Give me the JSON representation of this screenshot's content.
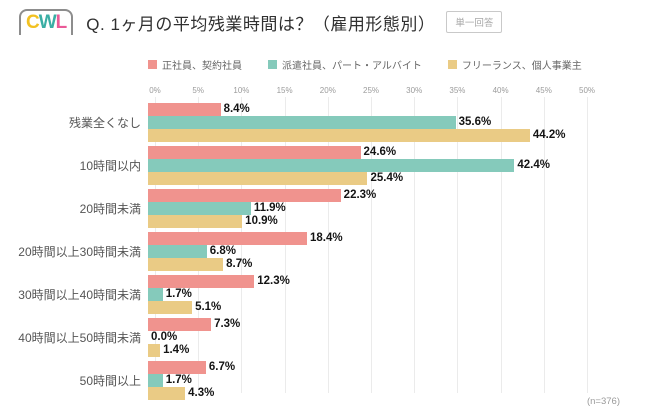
{
  "header": {
    "logo": {
      "letters": [
        {
          "char": "C",
          "color": "#f2c121"
        },
        {
          "char": "W",
          "color": "#3aaea4"
        },
        {
          "char": "L",
          "color": "#ea5a97"
        }
      ]
    },
    "title": "Q. 1ヶ月の平均残業時間は？（雇用形態別）",
    "badge": "単一回答"
  },
  "chart_data": {
    "type": "bar",
    "orientation": "horizontal",
    "title": "Q. 1ヶ月の平均残業時間は？（雇用形態別）",
    "categories": [
      "残業全くなし",
      "10時間以内",
      "20時間未満",
      "20時間以上30時間未満",
      "30時間以上40時間未満",
      "40時間以上50時間未満",
      "50時間以上"
    ],
    "series": [
      {
        "name": "正社員、契約社員",
        "color": "#f0938e",
        "values": [
          8.4,
          24.6,
          22.3,
          18.4,
          12.3,
          7.3,
          6.7
        ]
      },
      {
        "name": "派遣社員、パート・アルバイト",
        "color": "#85cabb",
        "values": [
          35.6,
          42.4,
          11.9,
          6.8,
          1.7,
          0.0,
          1.7
        ]
      },
      {
        "name": "フリーランス、個人事業主",
        "color": "#eacb85",
        "values": [
          44.2,
          25.4,
          10.9,
          8.7,
          5.1,
          1.4,
          4.3
        ]
      }
    ],
    "value_suffix": "%",
    "xlim": [
      0,
      50
    ],
    "x_tick_step": 5,
    "x_ticks": [
      "0%",
      "5%",
      "10%",
      "15%",
      "20%",
      "25%",
      "30%",
      "35%",
      "40%",
      "45%",
      "50%"
    ],
    "grid": true,
    "legend_position": "top"
  },
  "footer": {
    "note": "(n=376)"
  }
}
